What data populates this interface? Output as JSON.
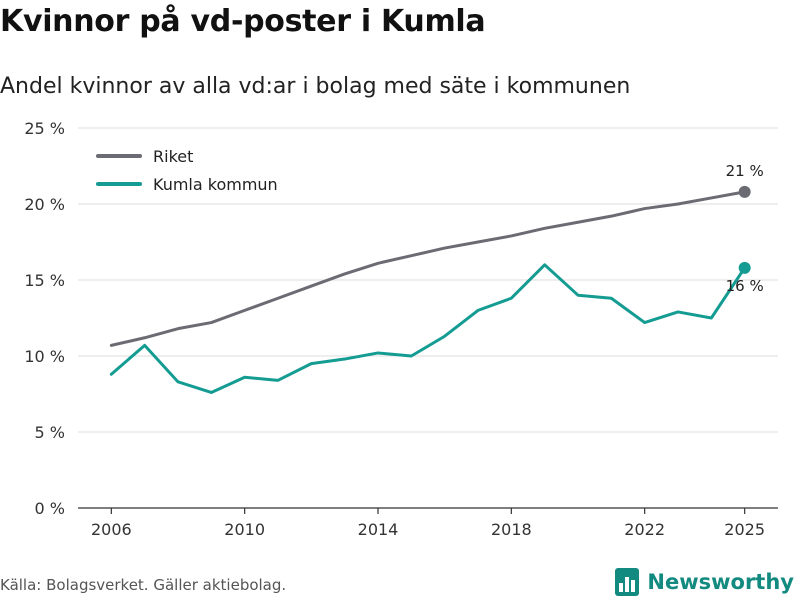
{
  "title": "Kvinnor på vd-poster i Kumla",
  "subtitle": "Andel kvinnor av alla vd:ar i bolag med säte i kommunen",
  "source": "Källa: Bolagsverket. Gäller aktiebolag.",
  "brand": {
    "name": "Newsworthy",
    "color": "#138a80",
    "icon": "bar-chart-icon"
  },
  "chart_data": {
    "type": "line",
    "x": [
      2006,
      2007,
      2008,
      2009,
      2010,
      2011,
      2012,
      2013,
      2014,
      2015,
      2016,
      2017,
      2018,
      2019,
      2020,
      2021,
      2022,
      2023,
      2024,
      2025
    ],
    "x_ticks": [
      "2006",
      "2010",
      "2014",
      "2018",
      "2022",
      "2025"
    ],
    "y_ticks": [
      "0 %",
      "5 %",
      "10 %",
      "15 %",
      "20 %",
      "25 %"
    ],
    "ylim": [
      0,
      25
    ],
    "xlim": [
      2005,
      2026
    ],
    "grid": true,
    "legend_position": "top-left",
    "series": [
      {
        "name": "Riket",
        "color": "#6b6b73",
        "values": [
          10.7,
          11.2,
          11.8,
          12.2,
          13.0,
          13.8,
          14.6,
          15.4,
          16.1,
          16.6,
          17.1,
          17.5,
          17.9,
          18.4,
          18.8,
          19.2,
          19.7,
          20.0,
          20.4,
          20.8
        ],
        "end_label": "21 %"
      },
      {
        "name": "Kumla kommun",
        "color": "#149c93",
        "values": [
          8.8,
          10.7,
          8.3,
          7.6,
          8.6,
          8.4,
          9.5,
          9.8,
          10.2,
          10.0,
          11.3,
          13.0,
          13.8,
          16.0,
          14.0,
          13.8,
          12.2,
          12.9,
          12.5,
          15.8
        ],
        "end_label": "16 %"
      }
    ]
  }
}
